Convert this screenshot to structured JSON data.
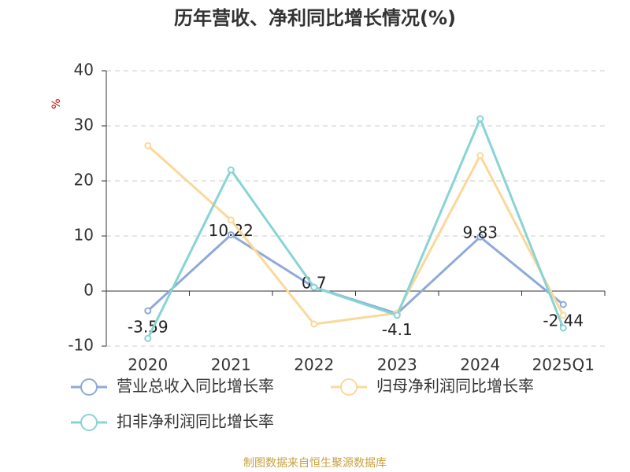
{
  "chart_data": {
    "type": "line",
    "title": "历年营收、净利同比增长情况(%)",
    "y_label": "%",
    "categories": [
      "2020",
      "2021",
      "2022",
      "2023",
      "2024",
      "2025Q1"
    ],
    "series": [
      {
        "name": "营业总收入同比增长率",
        "color": "#8eaad8",
        "values": [
          -3.59,
          10.22,
          0.7,
          -4.1,
          9.83,
          -2.44
        ],
        "show_labels": true
      },
      {
        "name": "归母净利润同比增长率",
        "color": "#fbd89a",
        "values": [
          26.4,
          12.9,
          -6.0,
          -4.0,
          24.6,
          -4.4
        ]
      },
      {
        "name": "扣非净利润同比增长率",
        "color": "#88d4d4",
        "values": [
          -8.6,
          22.0,
          0.7,
          -4.4,
          31.3,
          -6.7
        ]
      }
    ],
    "ylim": [
      -10,
      40
    ],
    "yticks": [
      -10,
      0,
      10,
      20,
      30,
      40
    ],
    "grid": true,
    "source": "制图数据来自恒生聚源数据库"
  }
}
